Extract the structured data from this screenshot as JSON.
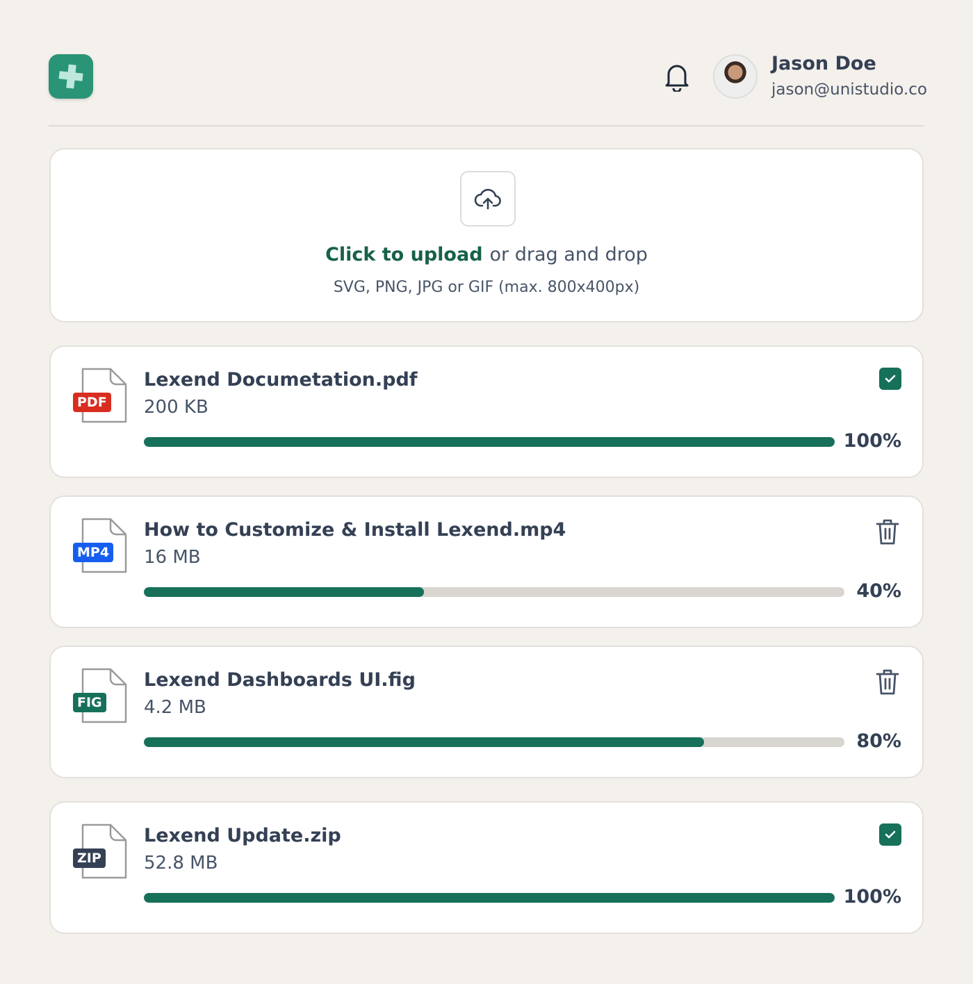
{
  "header": {
    "user_name": "Jason Doe",
    "user_email": "jason@unistudio.co"
  },
  "upload": {
    "cta": "Click to upload",
    "rest": "or drag and drop",
    "hint": "SVG, PNG, JPG or GIF (max. 800x400px)"
  },
  "colors": {
    "accent": "#17705a",
    "pdf": "#d92d20",
    "mp4": "#155eef",
    "fig": "#17705a",
    "zip": "#344054"
  },
  "files": [
    {
      "name": "Lexend Documetation.pdf",
      "size": "200 KB",
      "type": "PDF",
      "progress": 100,
      "progress_label": "100%",
      "status": "complete"
    },
    {
      "name": "How to Customize & Install Lexend.mp4",
      "size": "16 MB",
      "type": "MP4",
      "progress": 40,
      "progress_label": "40%",
      "status": "uploading"
    },
    {
      "name": "Lexend Dashboards UI.fig",
      "size": "4.2 MB",
      "type": "FIG",
      "progress": 80,
      "progress_label": "80%",
      "status": "uploading"
    },
    {
      "name": "Lexend Update.zip",
      "size": "52.8 MB",
      "type": "ZIP",
      "progress": 100,
      "progress_label": "100%",
      "status": "complete"
    }
  ]
}
